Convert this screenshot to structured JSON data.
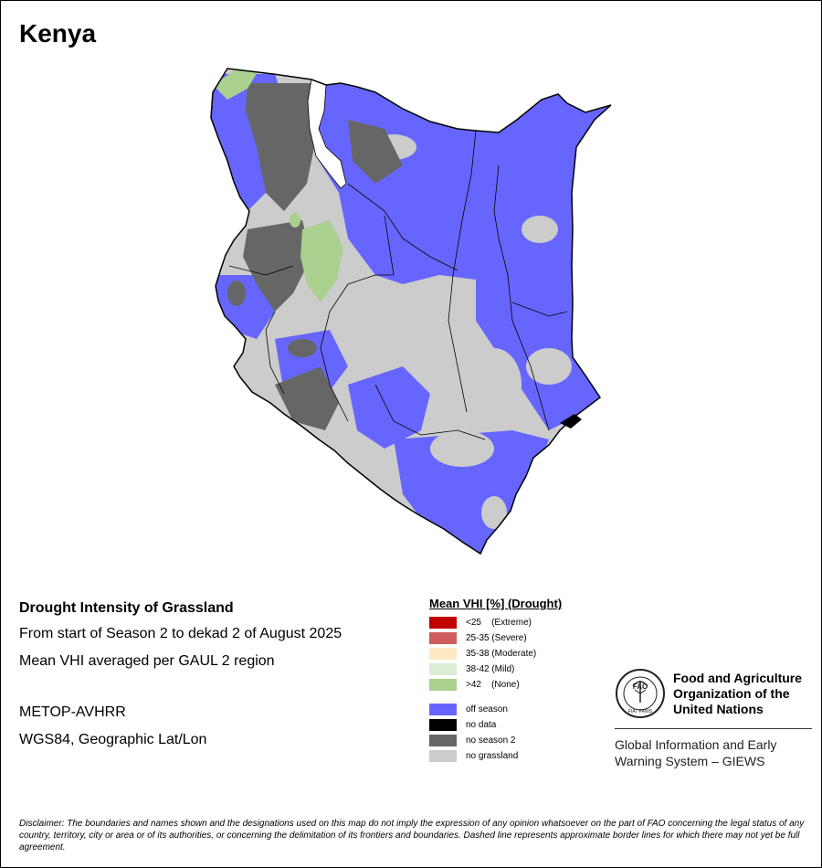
{
  "map": {
    "country": "Kenya"
  },
  "info": {
    "heading": "Drought Intensity of Grassland",
    "period": "From start of Season 2 to dekad 2 of August 2025",
    "method": "Mean VHI averaged per GAUL 2 region",
    "sensor": "METOP-AVHRR",
    "projection": "WGS84, Geographic Lat/Lon"
  },
  "legend": {
    "title": "Mean VHI [%] (Drought)",
    "classes": [
      {
        "label": "<25    (Extreme)",
        "color": "#c00000"
      },
      {
        "label": "25-35 (Severe)",
        "color": "#cd5c5c"
      },
      {
        "label": "35-38 (Moderate)",
        "color": "#fde9c4"
      },
      {
        "label": "38-42 (Mild)",
        "color": "#dcedd5"
      },
      {
        "label": ">42    (None)",
        "color": "#a9d08e"
      }
    ],
    "other": [
      {
        "label": "off season",
        "color": "#6666ff"
      },
      {
        "label": "no data",
        "color": "#000000"
      },
      {
        "label": "no season 2",
        "color": "#666666"
      },
      {
        "label": "no grassland",
        "color": "#cccccc"
      }
    ]
  },
  "fao": {
    "org_line1": "Food and Agriculture",
    "org_line2": "Organization of the",
    "org_line3": "United Nations",
    "emblem_text": "FAO",
    "emblem_motto": "FIAT PANIS",
    "giews_line1": "Global Information and Early",
    "giews_line2": "Warning System – GIEWS"
  },
  "disclaimer": "Disclaimer: The boundaries and names shown and the designations used on this map do not imply the expression of any opinion whatsoever on the part of FAO concerning the legal status of any country, territory, city or area or of its authorities, or concerning the delimitation of its frontiers and boundaries. Dashed line represents approximate border lines for which there may not yet be full agreement."
}
